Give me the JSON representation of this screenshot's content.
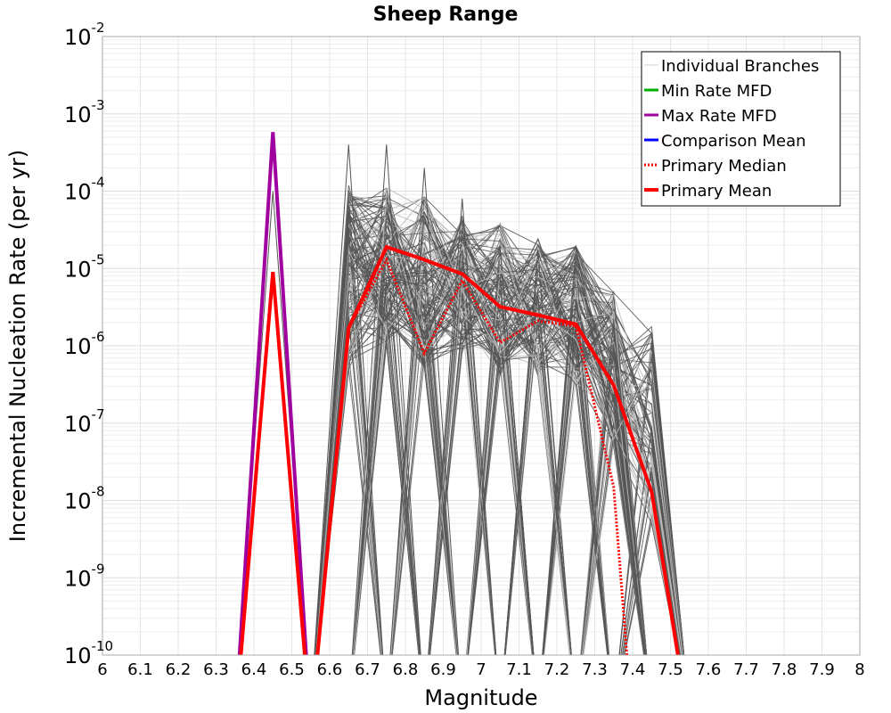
{
  "chart_data": {
    "type": "line",
    "title": "Sheep Range",
    "xlabel": "Magnitude",
    "ylabel": "Incremental Nucleation Rate (per yr)",
    "xlim": [
      6,
      8
    ],
    "ylim": [
      1e-10,
      0.01
    ],
    "yscale": "log",
    "grid": true,
    "legend_position": "top-right",
    "xticks": [
      "6",
      "6.1",
      "6.2",
      "6.3",
      "6.4",
      "6.5",
      "6.6",
      "6.7",
      "6.8",
      "6.9",
      "7",
      "7.1",
      "7.2",
      "7.3",
      "7.4",
      "7.5",
      "7.6",
      "7.7",
      "7.8",
      "7.9",
      "8"
    ],
    "yticks": [
      {
        "base": "10",
        "exp": "-2",
        "value": 0.01
      },
      {
        "base": "10",
        "exp": "-3",
        "value": 0.001
      },
      {
        "base": "10",
        "exp": "-4",
        "value": 0.0001
      },
      {
        "base": "10",
        "exp": "-5",
        "value": 1e-05
      },
      {
        "base": "10",
        "exp": "-6",
        "value": 1e-06
      },
      {
        "base": "10",
        "exp": "-7",
        "value": 1e-07
      },
      {
        "base": "10",
        "exp": "-8",
        "value": 1e-08
      },
      {
        "base": "10",
        "exp": "-9",
        "value": 1e-09
      },
      {
        "base": "10",
        "exp": "-10",
        "value": 1e-10
      }
    ],
    "legend": [
      {
        "label": "Individual Branches",
        "color": "#cfcfcf",
        "style": "solid",
        "width": 1
      },
      {
        "label": "Min Rate MFD",
        "color": "#00b000",
        "style": "solid",
        "width": 3
      },
      {
        "label": "Max Rate MFD",
        "color": "#a000a0",
        "style": "solid",
        "width": 3
      },
      {
        "label": "Comparison Mean",
        "color": "#0000ff",
        "style": "solid",
        "width": 3
      },
      {
        "label": "Primary Median",
        "color": "#ff0000",
        "style": "dotted",
        "width": 3
      },
      {
        "label": "Primary Mean",
        "color": "#ff0000",
        "style": "solid",
        "width": 4
      }
    ],
    "series": [
      {
        "name": "Max Rate MFD",
        "color": "#a000a0",
        "width": 4,
        "style": "solid",
        "x": [
          6.35,
          6.45,
          6.55
        ],
        "y": [
          1e-12,
          0.00058,
          1e-12
        ]
      },
      {
        "name": "Min Rate MFD",
        "color": "#00b000",
        "width": 3,
        "style": "solid",
        "x": [
          6.35,
          6.45,
          6.55
        ],
        "y": [
          1e-12,
          9e-06,
          1e-12
        ]
      },
      {
        "name": "Primary Median",
        "color": "#ff0000",
        "width": 3,
        "style": "dotted",
        "x": [
          6.55,
          6.65,
          6.75,
          6.85,
          6.95,
          7.05,
          7.15,
          7.25,
          7.35,
          7.4
        ],
        "y": [
          1e-12,
          1.7e-06,
          1.3e-05,
          8e-07,
          7e-06,
          1.1e-06,
          2.1e-06,
          1.8e-06,
          1.5e-08,
          1e-12
        ]
      },
      {
        "name": "Primary Mean",
        "color": "#ff0000",
        "width": 4,
        "style": "solid",
        "x": [
          6.35,
          6.45,
          6.55,
          6.65,
          6.75,
          6.85,
          6.95,
          7.05,
          7.15,
          7.25,
          7.35,
          7.45,
          7.55
        ],
        "y": [
          1e-12,
          9e-06,
          1e-12,
          1.7e-06,
          1.9e-05,
          1.3e-05,
          8.5e-06,
          3.2e-06,
          2.5e-06,
          1.9e-06,
          3.1e-07,
          1.3e-08,
          1e-12
        ]
      }
    ]
  }
}
